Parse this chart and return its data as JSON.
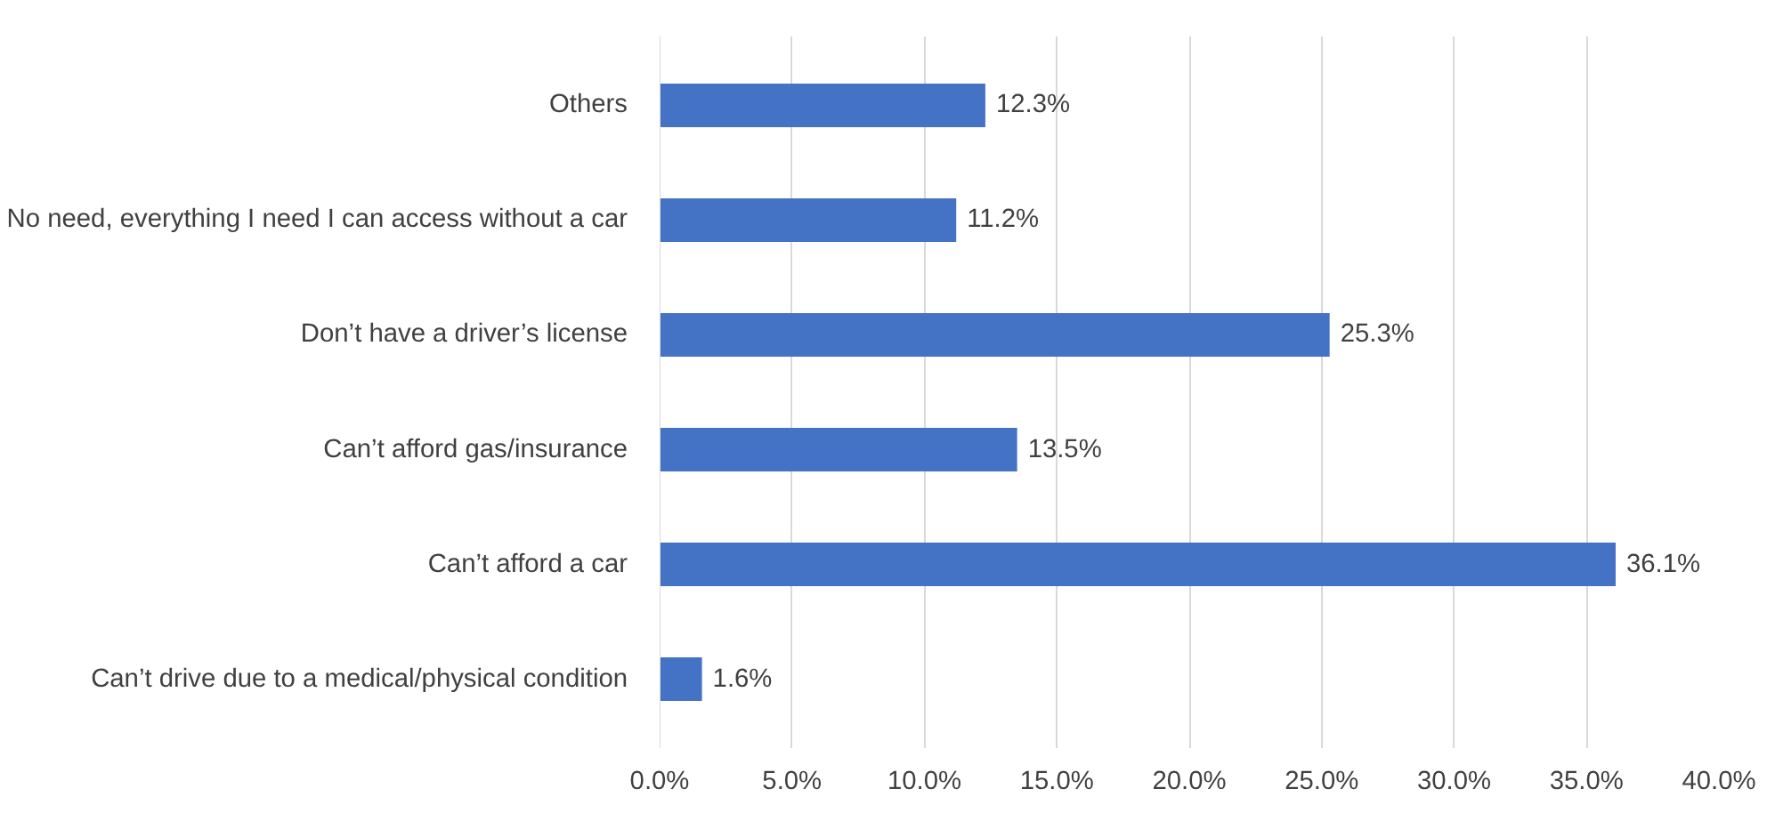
{
  "chart_data": {
    "type": "bar",
    "orientation": "horizontal",
    "categories": [
      "Others",
      "No need, everything I need I can access without a car",
      "Don’t have a driver’s license",
      "Can’t afford gas/insurance",
      "Can’t afford a car",
      "Can’t drive due to a medical/physical condition"
    ],
    "values": [
      12.3,
      11.2,
      25.3,
      13.5,
      36.1,
      1.6
    ],
    "value_labels": [
      "12.3%",
      "11.2%",
      "25.3%",
      "13.5%",
      "36.1%",
      "1.6%"
    ],
    "color": "#4472c4",
    "xlim": [
      0,
      40
    ],
    "xticks": [
      {
        "value": 0,
        "label": "0.0%"
      },
      {
        "value": 5,
        "label": "5.0%"
      },
      {
        "value": 10,
        "label": "10.0%"
      },
      {
        "value": 15,
        "label": "15.0%"
      },
      {
        "value": 20,
        "label": "20.0%"
      },
      {
        "value": 25,
        "label": "25.0%"
      },
      {
        "value": 30,
        "label": "30.0%"
      },
      {
        "value": 35,
        "label": "35.0%"
      },
      {
        "value": 40,
        "label": "40.0%"
      }
    ],
    "grid": "x"
  }
}
